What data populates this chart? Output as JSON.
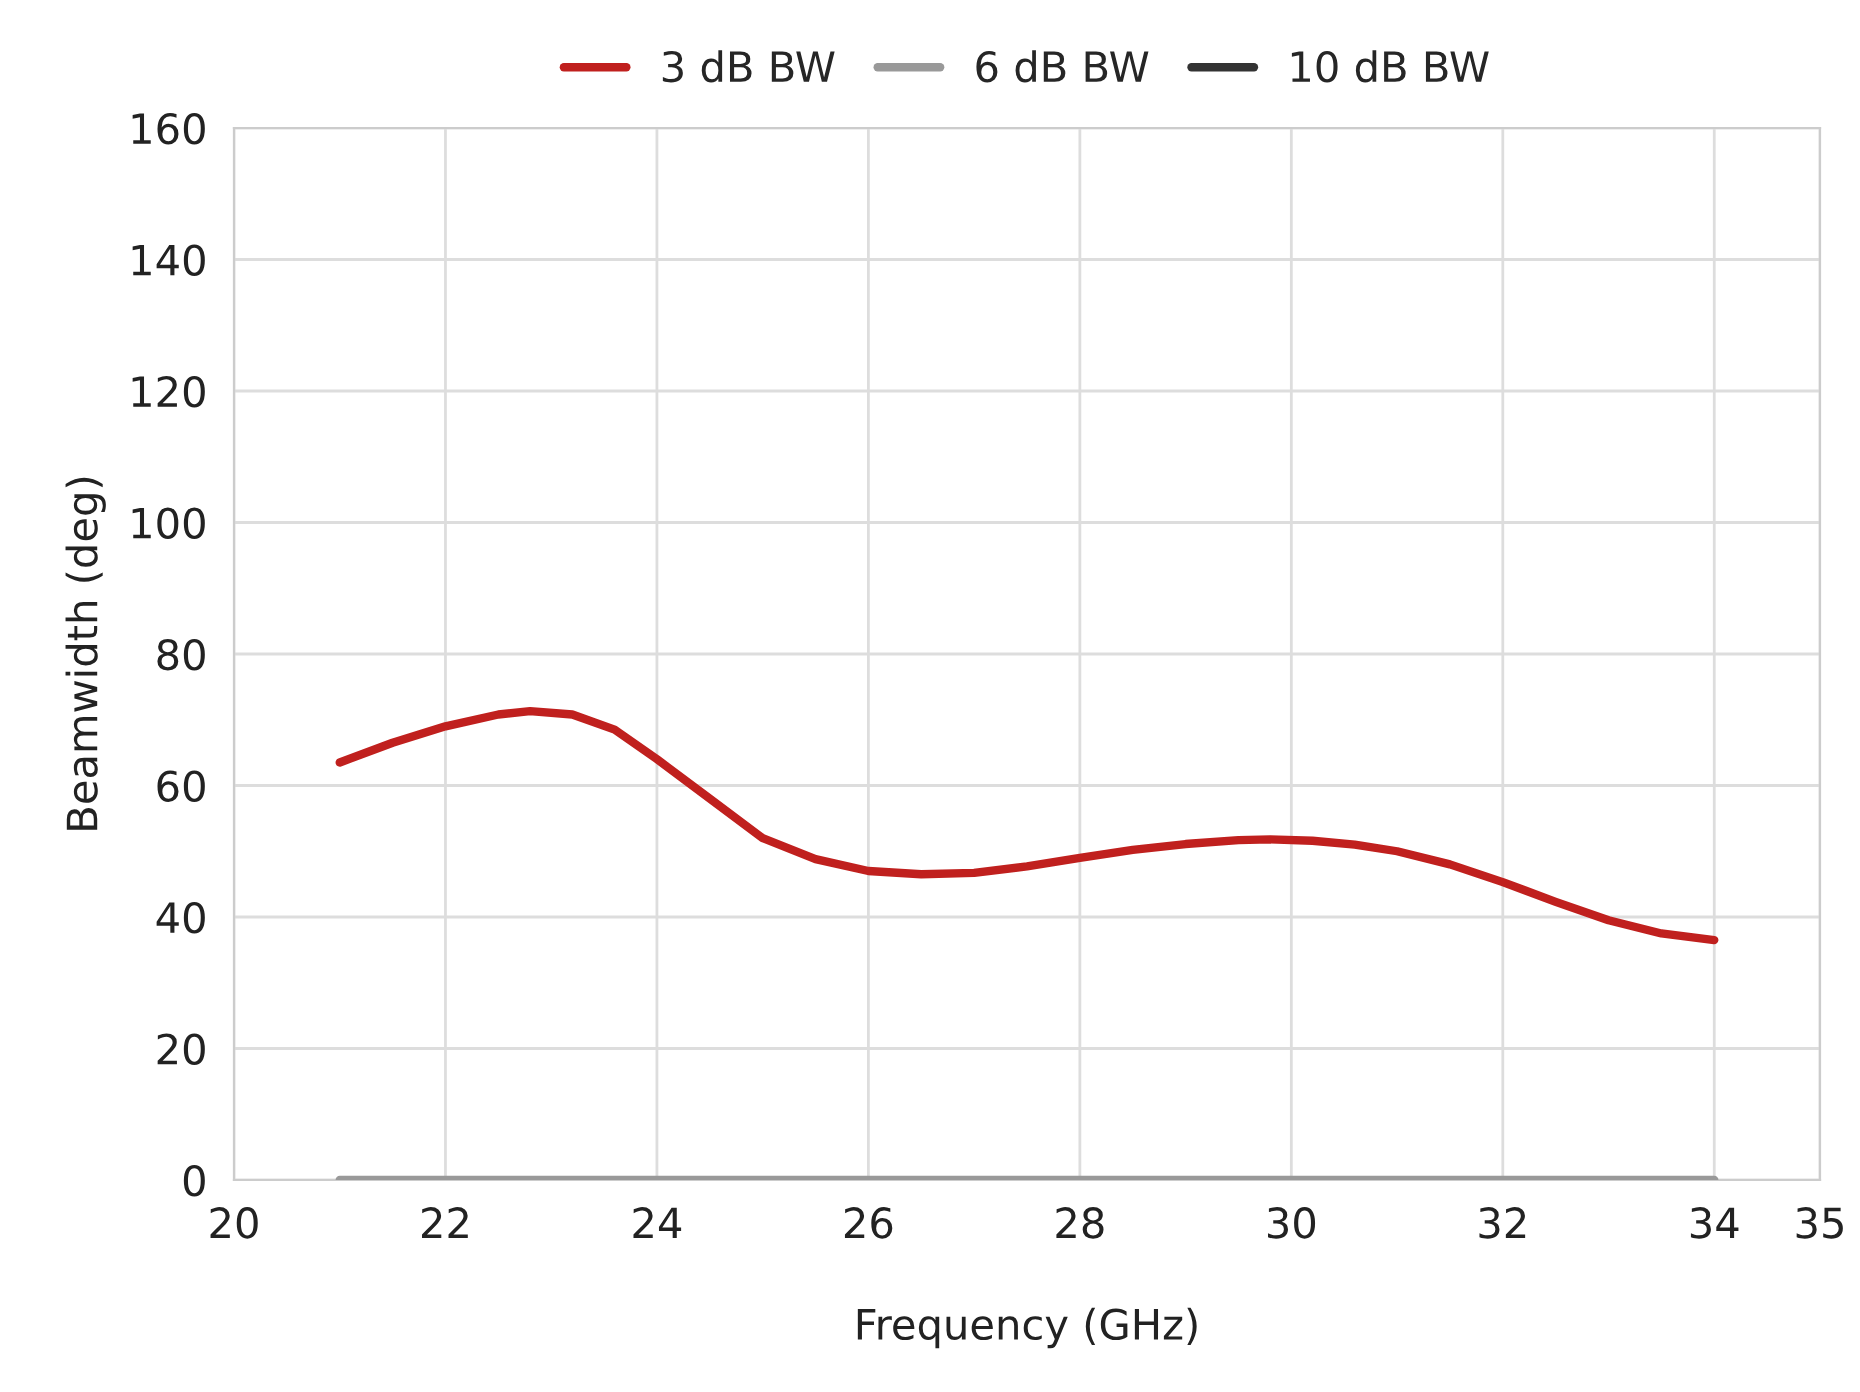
{
  "chart_data": {
    "type": "line",
    "xlabel": "Frequency (GHz)",
    "ylabel": "Beamwidth (deg)",
    "x": [
      21,
      21.5,
      22,
      22.5,
      22.8,
      23.2,
      23.6,
      24,
      24.5,
      25,
      25.5,
      26,
      26.5,
      27,
      27.5,
      28,
      28.5,
      29,
      29.5,
      29.8,
      30.2,
      30.6,
      31,
      31.5,
      32,
      32.5,
      33,
      33.5,
      34
    ],
    "series": [
      {
        "name": "3 dB BW",
        "color": "#c0201e",
        "values": [
          63.5,
          66.5,
          69,
          70.8,
          71.3,
          70.8,
          68.5,
          64,
          58,
          52,
          48.8,
          47,
          46.5,
          46.7,
          47.7,
          49,
          50.2,
          51.1,
          51.7,
          51.8,
          51.6,
          51,
          50,
          48,
          45.3,
          42.3,
          39.5,
          37.5,
          36.5
        ]
      },
      {
        "name": "6 dB BW",
        "color": "#999999",
        "values": [
          0,
          0,
          0,
          0,
          0,
          0,
          0,
          0,
          0,
          0,
          0,
          0,
          0,
          0,
          0,
          0,
          0,
          0,
          0,
          0,
          0,
          0,
          0,
          0,
          0,
          0,
          0,
          0,
          0
        ]
      },
      {
        "name": "10 dB BW",
        "color": "#333333",
        "values": [
          null,
          null,
          null,
          null,
          null,
          null,
          null,
          null,
          null,
          null,
          null,
          null,
          null,
          null,
          null,
          null,
          null,
          null,
          null,
          null,
          null,
          null,
          null,
          null,
          null,
          null,
          null,
          null,
          null
        ]
      }
    ],
    "xlim": [
      20,
      35
    ],
    "xticks": [
      20,
      22,
      24,
      26,
      28,
      30,
      32,
      34,
      35
    ],
    "ylim": [
      0,
      160
    ],
    "yticks": [
      0,
      20,
      40,
      60,
      80,
      100,
      120,
      140,
      160
    ],
    "grid": true,
    "legend": "top",
    "marker": "none",
    "line_style": "solid"
  }
}
